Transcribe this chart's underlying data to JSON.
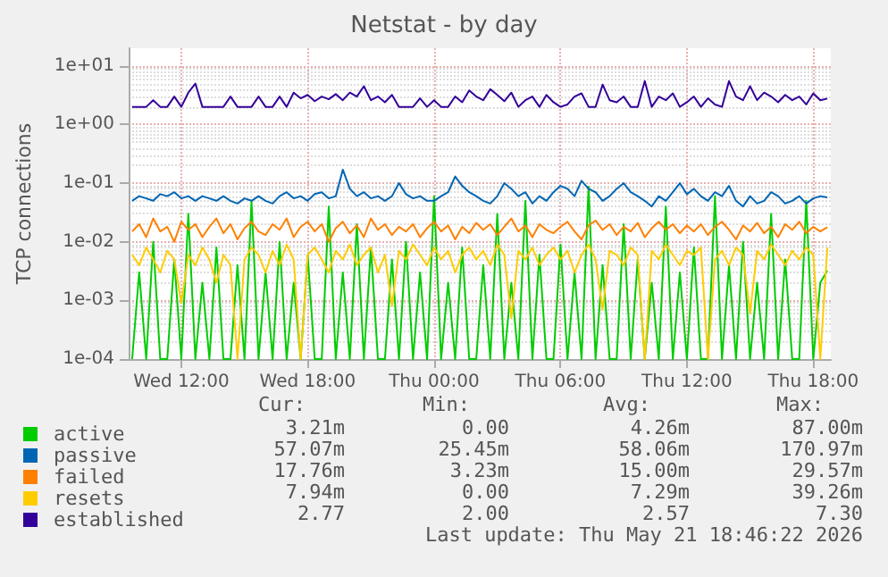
{
  "chart_data": {
    "type": "line",
    "title": "Netstat - by day",
    "ylabel": "TCP connections",
    "log": "y",
    "grid": true,
    "legend": "bottom left",
    "marker": "none",
    "line_style": "solid",
    "xlim": [
      "2026-05-20T09:30",
      "2026-05-21T18:50"
    ],
    "xticks": [
      {
        "value": "2026-05-20T12:00",
        "label": "Wed 12:00"
      },
      {
        "value": "2026-05-20T18:00",
        "label": "Wed 18:00"
      },
      {
        "value": "2026-05-21T00:00",
        "label": "Thu 00:00"
      },
      {
        "value": "2026-05-21T06:00",
        "label": "Thu 06:00"
      },
      {
        "value": "2026-05-21T12:00",
        "label": "Thu 12:00"
      },
      {
        "value": "2026-05-21T18:00",
        "label": "Thu 18:00"
      }
    ],
    "ylim": [
      0.0001,
      20
    ],
    "yticks": [
      {
        "value": 0.0001,
        "label": "1e-04"
      },
      {
        "value": 0.001,
        "label": "1e-03"
      },
      {
        "value": 0.01,
        "label": "1e-02"
      },
      {
        "value": 0.1,
        "label": "1e-01"
      },
      {
        "value": 1,
        "label": "1e+00"
      },
      {
        "value": 10,
        "label": "1e+01"
      }
    ],
    "x": [
      "2026-05-20T09:40",
      "2026-05-20T10:00",
      "2026-05-20T10:20",
      "2026-05-20T10:40",
      "2026-05-20T11:00",
      "2026-05-20T11:20",
      "2026-05-20T11:40",
      "2026-05-20T12:00",
      "2026-05-20T12:20",
      "2026-05-20T12:40",
      "2026-05-20T13:00",
      "2026-05-20T13:20",
      "2026-05-20T13:40",
      "2026-05-20T14:00",
      "2026-05-20T14:20",
      "2026-05-20T14:40",
      "2026-05-20T15:00",
      "2026-05-20T15:20",
      "2026-05-20T15:40",
      "2026-05-20T16:00",
      "2026-05-20T16:20",
      "2026-05-20T16:40",
      "2026-05-20T17:00",
      "2026-05-20T17:20",
      "2026-05-20T17:40",
      "2026-05-20T18:00",
      "2026-05-20T18:20",
      "2026-05-20T18:40",
      "2026-05-20T19:00",
      "2026-05-20T19:20",
      "2026-05-20T19:40",
      "2026-05-20T20:00",
      "2026-05-20T20:20",
      "2026-05-20T20:40",
      "2026-05-20T21:00",
      "2026-05-20T21:20",
      "2026-05-20T21:40",
      "2026-05-20T22:00",
      "2026-05-20T22:20",
      "2026-05-20T22:40",
      "2026-05-20T23:00",
      "2026-05-20T23:20",
      "2026-05-20T23:40",
      "2026-05-21T00:00",
      "2026-05-21T00:20",
      "2026-05-21T00:40",
      "2026-05-21T01:00",
      "2026-05-21T01:20",
      "2026-05-21T01:40",
      "2026-05-21T02:00",
      "2026-05-21T02:20",
      "2026-05-21T02:40",
      "2026-05-21T03:00",
      "2026-05-21T03:20",
      "2026-05-21T03:40",
      "2026-05-21T04:00",
      "2026-05-21T04:20",
      "2026-05-21T04:40",
      "2026-05-21T05:00",
      "2026-05-21T05:20",
      "2026-05-21T05:40",
      "2026-05-21T06:00",
      "2026-05-21T06:20",
      "2026-05-21T06:40",
      "2026-05-21T07:00",
      "2026-05-21T07:20",
      "2026-05-21T07:40",
      "2026-05-21T08:00",
      "2026-05-21T08:20",
      "2026-05-21T08:40",
      "2026-05-21T09:00",
      "2026-05-21T09:20",
      "2026-05-21T09:40",
      "2026-05-21T10:00",
      "2026-05-21T10:20",
      "2026-05-21T10:40",
      "2026-05-21T11:00",
      "2026-05-21T11:20",
      "2026-05-21T11:40",
      "2026-05-21T12:00",
      "2026-05-21T12:20",
      "2026-05-21T12:40",
      "2026-05-21T13:00",
      "2026-05-21T13:20",
      "2026-05-21T13:40",
      "2026-05-21T14:00",
      "2026-05-21T14:20",
      "2026-05-21T14:40",
      "2026-05-21T15:00",
      "2026-05-21T15:20",
      "2026-05-21T15:40",
      "2026-05-21T16:00",
      "2026-05-21T16:20",
      "2026-05-21T16:40",
      "2026-05-21T17:00",
      "2026-05-21T17:20",
      "2026-05-21T17:40",
      "2026-05-21T18:00",
      "2026-05-21T18:20",
      "2026-05-21T18:40"
    ],
    "series": [
      {
        "name": "active",
        "color": "#00cc00",
        "values": [
          0.0001,
          0.003,
          0.0001,
          0.01,
          0.0001,
          0.0001,
          0.005,
          0.0001,
          0.03,
          0.0001,
          0.002,
          0.0001,
          0.008,
          0.0001,
          0.0001,
          0.004,
          0.0001,
          0.05,
          0.0001,
          0.003,
          0.0001,
          0.01,
          0.0001,
          0.002,
          0.0001,
          0.006,
          0.0001,
          0.0001,
          0.04,
          0.0001,
          0.003,
          0.0001,
          0.02,
          0.0001,
          0.008,
          0.0001,
          0.0001,
          0.005,
          0.0001,
          0.01,
          0.0001,
          0.003,
          0.0001,
          0.06,
          0.0001,
          0.002,
          0.0001,
          0.008,
          0.0001,
          0.0001,
          0.004,
          0.0001,
          0.03,
          0.0001,
          0.002,
          0.0001,
          0.05,
          0.0001,
          0.006,
          0.0001,
          0.0001,
          0.009,
          0.0001,
          0.003,
          0.0001,
          0.087,
          0.0001,
          0.004,
          0.0001,
          0.0001,
          0.02,
          0.0001,
          0.005,
          0.0001,
          0.002,
          0.0001,
          0.04,
          0.0001,
          0.003,
          0.0001,
          0.008,
          0.0001,
          0.0001,
          0.06,
          0.0001,
          0.004,
          0.0001,
          0.01,
          0.0001,
          0.002,
          0.0001,
          0.03,
          0.0001,
          0.005,
          0.0001,
          0.0001,
          0.05,
          0.0001,
          0.002,
          0.00321
        ]
      },
      {
        "name": "passive",
        "color": "#0066b3",
        "values": [
          0.05,
          0.06,
          0.055,
          0.05,
          0.065,
          0.06,
          0.07,
          0.055,
          0.06,
          0.05,
          0.06,
          0.055,
          0.05,
          0.06,
          0.05,
          0.045,
          0.055,
          0.05,
          0.06,
          0.05,
          0.045,
          0.06,
          0.07,
          0.055,
          0.06,
          0.05,
          0.065,
          0.07,
          0.055,
          0.06,
          0.17,
          0.08,
          0.06,
          0.07,
          0.055,
          0.06,
          0.05,
          0.06,
          0.1,
          0.065,
          0.055,
          0.06,
          0.05,
          0.05,
          0.06,
          0.07,
          0.13,
          0.09,
          0.07,
          0.06,
          0.05,
          0.045,
          0.06,
          0.1,
          0.08,
          0.06,
          0.07,
          0.045,
          0.06,
          0.05,
          0.07,
          0.09,
          0.08,
          0.06,
          0.11,
          0.08,
          0.07,
          0.05,
          0.06,
          0.08,
          0.1,
          0.07,
          0.06,
          0.05,
          0.04,
          0.06,
          0.05,
          0.07,
          0.1,
          0.065,
          0.08,
          0.06,
          0.05,
          0.07,
          0.06,
          0.09,
          0.05,
          0.04,
          0.06,
          0.045,
          0.05,
          0.07,
          0.06,
          0.045,
          0.05,
          0.06,
          0.045,
          0.055,
          0.06,
          0.057
        ]
      },
      {
        "name": "failed",
        "color": "#ff8000",
        "values": [
          0.015,
          0.02,
          0.012,
          0.025,
          0.015,
          0.018,
          0.01,
          0.022,
          0.016,
          0.02,
          0.012,
          0.018,
          0.025,
          0.014,
          0.02,
          0.011,
          0.017,
          0.022,
          0.015,
          0.013,
          0.02,
          0.016,
          0.025,
          0.012,
          0.018,
          0.022,
          0.015,
          0.02,
          0.01,
          0.017,
          0.022,
          0.014,
          0.019,
          0.012,
          0.025,
          0.016,
          0.02,
          0.013,
          0.018,
          0.015,
          0.02,
          0.012,
          0.017,
          0.022,
          0.015,
          0.019,
          0.011,
          0.018,
          0.014,
          0.021,
          0.016,
          0.02,
          0.013,
          0.018,
          0.025,
          0.015,
          0.019,
          0.012,
          0.02,
          0.016,
          0.014,
          0.018,
          0.022,
          0.015,
          0.011,
          0.019,
          0.023,
          0.016,
          0.02,
          0.013,
          0.018,
          0.015,
          0.021,
          0.012,
          0.017,
          0.022,
          0.016,
          0.02,
          0.014,
          0.019,
          0.015,
          0.02,
          0.013,
          0.018,
          0.022,
          0.016,
          0.011,
          0.019,
          0.015,
          0.021,
          0.014,
          0.018,
          0.012,
          0.02,
          0.016,
          0.022,
          0.014,
          0.018,
          0.015,
          0.01776
        ]
      },
      {
        "name": "resets",
        "color": "#ffcc00",
        "values": [
          0.006,
          0.004,
          0.008,
          0.005,
          0.003,
          0.007,
          0.005,
          0.0009,
          0.006,
          0.004,
          0.008,
          0.005,
          0.002,
          0.006,
          0.004,
          0.0001,
          0.005,
          0.008,
          0.006,
          0.003,
          0.007,
          0.004,
          0.009,
          0.005,
          0.0001,
          0.006,
          0.008,
          0.005,
          0.003,
          0.007,
          0.005,
          0.009,
          0.004,
          0.006,
          0.008,
          0.003,
          0.006,
          0.0008,
          0.007,
          0.005,
          0.009,
          0.006,
          0.004,
          0.008,
          0.005,
          0.007,
          0.003,
          0.006,
          0.008,
          0.005,
          0.007,
          0.004,
          0.009,
          0.006,
          0.0005,
          0.007,
          0.005,
          0.008,
          0.004,
          0.006,
          0.008,
          0.005,
          0.007,
          0.003,
          0.006,
          0.009,
          0.005,
          0.0007,
          0.007,
          0.006,
          0.004,
          0.008,
          0.006,
          0.0001,
          0.007,
          0.005,
          0.009,
          0.006,
          0.004,
          0.007,
          0.006,
          0.008,
          0.0001,
          0.005,
          0.007,
          0.004,
          0.008,
          0.006,
          0.0006,
          0.007,
          0.005,
          0.009,
          0.006,
          0.004,
          0.007,
          0.005,
          0.008,
          0.006,
          0.0001,
          0.00794
        ]
      },
      {
        "name": "established",
        "color": "#330099",
        "values": [
          2,
          2,
          2,
          2.6,
          2,
          2,
          3,
          2,
          3.5,
          5,
          2,
          2,
          2,
          2,
          3,
          2,
          2,
          2,
          3,
          2,
          2,
          3,
          2,
          3.5,
          2.8,
          3.2,
          2.5,
          3,
          2.7,
          3.3,
          2.6,
          3.5,
          3,
          4.5,
          2.6,
          3,
          2.4,
          3.2,
          2,
          2,
          2,
          2.8,
          2,
          2.6,
          2,
          2,
          3,
          2.4,
          3.8,
          3,
          2.6,
          4,
          3.2,
          2.5,
          3.5,
          2,
          2.6,
          3,
          2,
          3.2,
          2.4,
          2,
          2.2,
          3,
          3.4,
          2,
          2,
          4.8,
          2.6,
          2.4,
          3,
          2,
          2,
          5.5,
          2,
          3,
          2.6,
          3.4,
          2,
          2.4,
          3,
          2,
          2.8,
          2.2,
          2,
          5.5,
          3,
          2.6,
          4.5,
          2.6,
          3.5,
          3,
          2.4,
          3.2,
          2.6,
          3,
          2.2,
          3.4,
          2.6,
          2.77
        ]
      }
    ],
    "annotations": [
      "Cur:",
      "Min:",
      "Avg:",
      "Max:",
      "3.21m",
      "0.00",
      "4.26m",
      "87.00m",
      "57.07m",
      "25.45m",
      "58.06m",
      "170.97m",
      "17.76m",
      "3.23m",
      "15.00m",
      "29.57m",
      "7.94m",
      "0.00",
      "7.29m",
      "39.26m",
      "2.77",
      "2.00",
      "2.57",
      "7.30",
      "Last update: Thu May 21 18:46:22 2026"
    ]
  }
}
